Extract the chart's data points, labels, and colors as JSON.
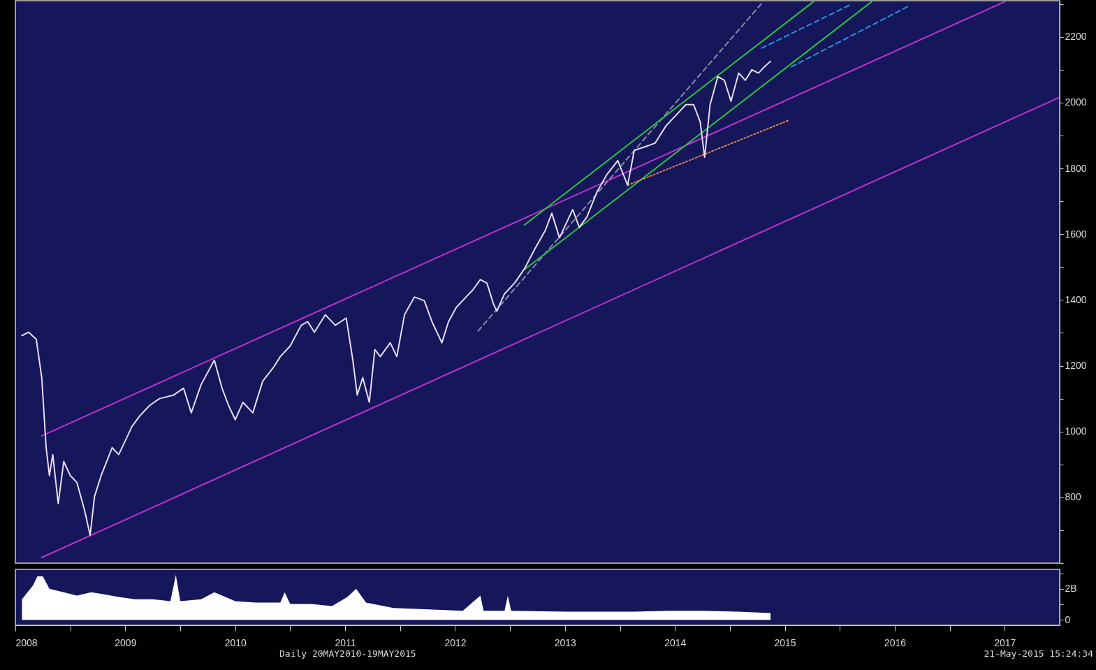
{
  "chart_data": [
    {
      "type": "line",
      "tick_labels": "y",
      "xlim": [
        2008.5,
        2018
      ],
      "ylim": [
        600,
        2310
      ],
      "yticks": [
        {
          "value": 600,
          "label": null
        },
        {
          "value": 700,
          "label": null
        },
        800,
        {
          "value": 900,
          "label": null
        },
        1000,
        {
          "value": 1100,
          "label": null
        },
        1200,
        {
          "value": 1300,
          "label": null
        },
        1400,
        {
          "value": 1500,
          "label": null
        },
        1600,
        {
          "value": 1700,
          "label": null
        },
        1800,
        {
          "value": 1900,
          "label": null
        },
        2000,
        {
          "value": 2100,
          "label": null
        },
        2200,
        {
          "value": 2300,
          "label": null
        }
      ],
      "series": [
        {
          "color": "#c030d0",
          "line_style": "solid",
          "x": [
            2008.74,
            2017.5
          ],
          "values": [
            987,
            2307
          ]
        },
        {
          "color": "#c030d0",
          "line_style": "solid",
          "x": [
            2008.74,
            2017.99
          ],
          "values": [
            617,
            2015
          ]
        },
        {
          "color": "#8a8aa8",
          "line_style": "dashed",
          "x": [
            2012.71,
            2015.29
          ],
          "values": [
            1306,
            2302
          ]
        },
        {
          "color": "#30c040",
          "line_style": "solid",
          "x": [
            2013.13,
            2015.76
          ],
          "values": [
            1628,
            2307
          ]
        },
        {
          "color": "#30c040",
          "line_style": "solid",
          "x": [
            2013.13,
            2016.29
          ],
          "values": [
            1492,
            2307
          ]
        },
        {
          "color": "#2f8fe0",
          "line_style": "dashed",
          "x": [
            2015.29,
            2016.11
          ],
          "values": [
            2166,
            2300
          ]
        },
        {
          "color": "#2f8fe0",
          "line_style": "dashed",
          "x": [
            2015.56,
            2016.64
          ],
          "values": [
            2109,
            2296
          ]
        },
        {
          "color": "#e08050",
          "line_style": "dotted",
          "x": [
            2014.07,
            2015.54
          ],
          "values": [
            1749,
            1947
          ]
        },
        {
          "color": "#e8dcf0",
          "line_style": "solid",
          "x": [
            2008.56,
            2008.62,
            2008.69,
            2008.74,
            2008.78,
            2008.81,
            2008.84,
            2008.89,
            2008.94,
            2009.0,
            2009.06,
            2009.13,
            2009.18,
            2009.22,
            2009.28,
            2009.38,
            2009.44,
            2009.5,
            2009.56,
            2009.63,
            2009.72,
            2009.81,
            2009.94,
            2010.03,
            2010.1,
            2010.19,
            2010.31,
            2010.38,
            2010.44,
            2010.5,
            2010.57,
            2010.66,
            2010.75,
            2010.85,
            2010.91,
            2011.0,
            2011.1,
            2011.16,
            2011.22,
            2011.32,
            2011.41,
            2011.51,
            2011.57,
            2011.61,
            2011.66,
            2011.72,
            2011.77,
            2011.82,
            2011.91,
            2011.97,
            2012.04,
            2012.13,
            2012.22,
            2012.29,
            2012.38,
            2012.44,
            2012.51,
            2012.6,
            2012.66,
            2012.73,
            2012.79,
            2012.85,
            2012.88,
            2012.95,
            2013.04,
            2013.13,
            2013.23,
            2013.32,
            2013.38,
            2013.45,
            2013.51,
            2013.57,
            2013.63,
            2013.7,
            2013.79,
            2013.88,
            2013.98,
            2014.07,
            2014.13,
            2014.23,
            2014.32,
            2014.42,
            2014.51,
            2014.6,
            2014.67,
            2014.73,
            2014.77,
            2014.82,
            2014.89,
            2014.95,
            2015.01,
            2015.08,
            2015.14,
            2015.2,
            2015.26,
            2015.32,
            2015.37
          ],
          "values": [
            1292,
            1302,
            1281,
            1164,
            951,
            866,
            930,
            781,
            909,
            866,
            845,
            760,
            685,
            802,
            866,
            951,
            930,
            972,
            1015,
            1047,
            1079,
            1100,
            1111,
            1132,
            1057,
            1143,
            1217,
            1132,
            1079,
            1036,
            1089,
            1057,
            1153,
            1196,
            1228,
            1260,
            1323,
            1334,
            1302,
            1355,
            1323,
            1345,
            1217,
            1111,
            1164,
            1089,
            1249,
            1228,
            1270,
            1228,
            1355,
            1409,
            1398,
            1334,
            1270,
            1334,
            1377,
            1409,
            1430,
            1462,
            1451,
            1387,
            1366,
            1419,
            1451,
            1494,
            1558,
            1611,
            1664,
            1589,
            1632,
            1675,
            1621,
            1653,
            1728,
            1781,
            1824,
            1749,
            1855,
            1866,
            1877,
            1930,
            1962,
            1994,
            1994,
            1941,
            1834,
            1994,
            2079,
            2068,
            2004,
            2090,
            2068,
            2100,
            2090,
            2111,
            2126
          ]
        }
      ]
    },
    {
      "type": "area",
      "color": "#ffffff",
      "xlim": [
        2008.5,
        2018
      ],
      "ylim": [
        -0.35,
        3.25
      ],
      "yticks": [
        0,
        {
          "value": 1,
          "label": null
        },
        {
          "value": 2,
          "label": "2B"
        },
        {
          "value": 3,
          "label": null
        }
      ],
      "xticks": [
        {
          "value": 2008.5,
          "label": "2008"
        },
        {
          "value": 2009,
          "label": null
        },
        {
          "value": 2009.5,
          "label": "2009"
        },
        {
          "value": 2010,
          "label": null
        },
        {
          "value": 2010.5,
          "label": "2010"
        },
        {
          "value": 2011,
          "label": null
        },
        {
          "value": 2011.5,
          "label": "2011"
        },
        {
          "value": 2012,
          "label": null
        },
        {
          "value": 2012.5,
          "label": "2012"
        },
        {
          "value": 2013,
          "label": null
        },
        {
          "value": 2013.5,
          "label": "2013"
        },
        {
          "value": 2014,
          "label": null
        },
        {
          "value": 2014.5,
          "label": "2014"
        },
        {
          "value": 2015,
          "label": null
        },
        {
          "value": 2015.5,
          "label": "2015"
        },
        {
          "value": 2016,
          "label": null
        },
        {
          "value": 2016.5,
          "label": "2016"
        },
        {
          "value": 2017,
          "label": null
        },
        {
          "value": 2017.5,
          "label": "2017"
        }
      ],
      "x": [
        2008.56,
        2008.66,
        2008.7,
        2008.75,
        2008.81,
        2008.94,
        2009.06,
        2009.19,
        2009.31,
        2009.44,
        2009.59,
        2009.75,
        2009.91,
        2009.96,
        2010.0,
        2010.19,
        2010.31,
        2010.5,
        2010.69,
        2010.91,
        2010.95,
        2011.0,
        2011.19,
        2011.38,
        2011.52,
        2011.6,
        2011.69,
        2011.94,
        2012.26,
        2012.57,
        2012.73,
        2012.76,
        2012.95,
        2012.98,
        2013.01,
        2013.51,
        2014.13,
        2014.45,
        2014.76,
        2015.07,
        2015.37
      ],
      "values": [
        1.33,
        2.22,
        2.8,
        2.8,
        2.0,
        1.78,
        1.56,
        1.78,
        1.64,
        1.47,
        1.33,
        1.33,
        1.2,
        2.89,
        1.2,
        1.33,
        1.78,
        1.2,
        1.11,
        1.11,
        1.78,
        1.02,
        1.02,
        0.89,
        1.47,
        2.0,
        1.11,
        0.76,
        0.67,
        0.58,
        1.56,
        0.58,
        0.58,
        1.56,
        0.58,
        0.53,
        0.53,
        0.58,
        0.58,
        0.53,
        0.44
      ],
      "annotations": [
        "Daily 20MAY2010-19MAY2015",
        "21-May-2015 15:24:34"
      ]
    }
  ]
}
